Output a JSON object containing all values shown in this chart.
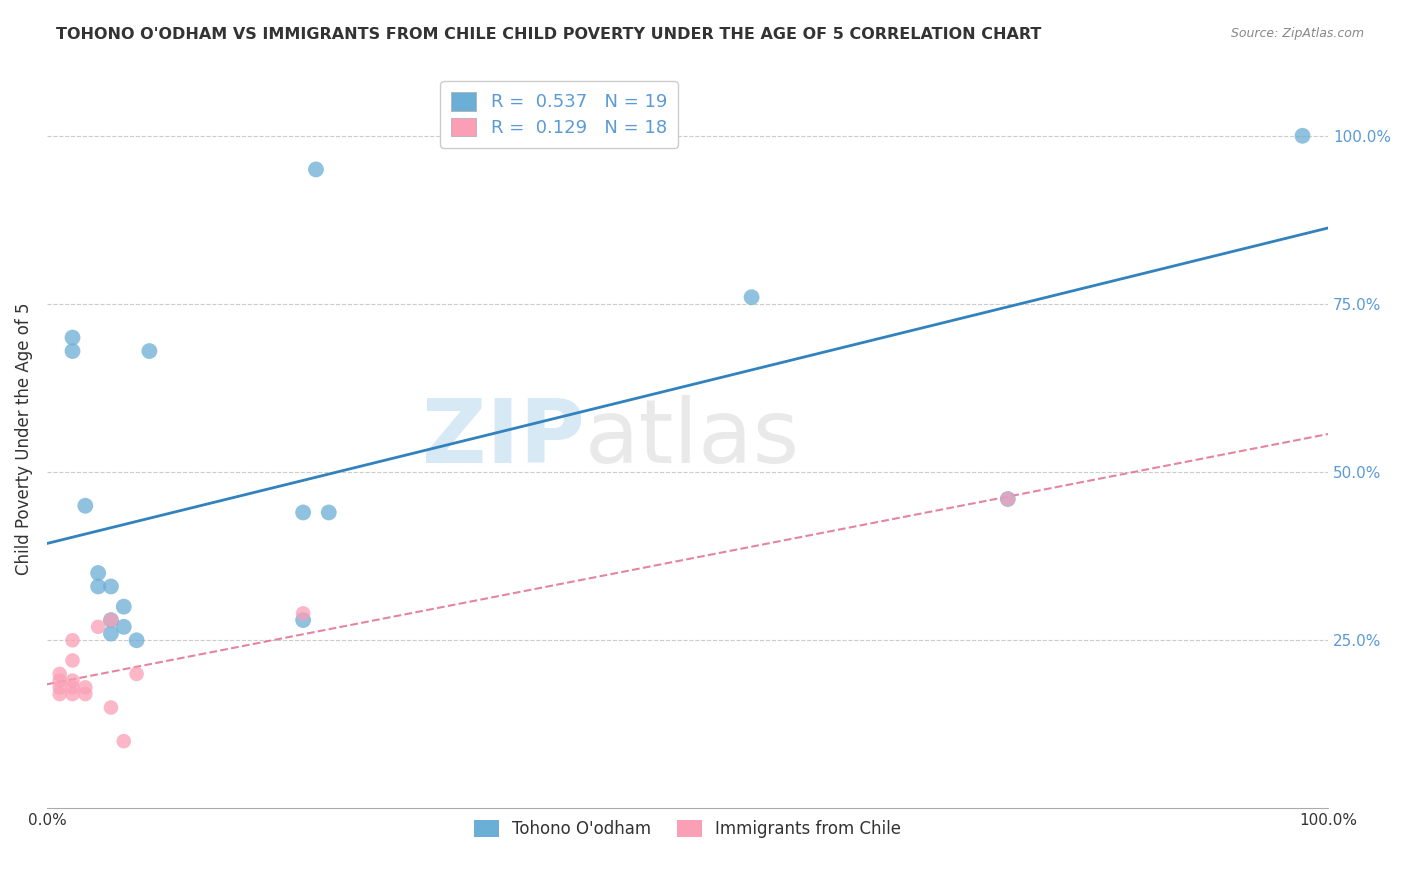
{
  "title": "TOHONO O'ODHAM VS IMMIGRANTS FROM CHILE CHILD POVERTY UNDER THE AGE OF 5 CORRELATION CHART",
  "source": "Source: ZipAtlas.com",
  "ylabel": "Child Poverty Under the Age of 5",
  "legend_label1": "Tohono O'odham",
  "legend_label2": "Immigrants from Chile",
  "R1": "0.537",
  "N1": "19",
  "R2": "0.129",
  "N2": "18",
  "color_blue": "#6baed6",
  "color_blue_line": "#3182bd",
  "color_pink": "#fa9fb5",
  "color_pink_line": "#e07090",
  "watermark_zip": "ZIP",
  "watermark_atlas": "atlas",
  "blue_x": [
    0.02,
    0.02,
    0.03,
    0.04,
    0.04,
    0.05,
    0.05,
    0.05,
    0.06,
    0.06,
    0.07,
    0.08,
    0.2,
    0.2,
    0.22,
    0.55,
    0.75,
    0.98,
    0.21
  ],
  "blue_y": [
    0.68,
    0.7,
    0.45,
    0.33,
    0.35,
    0.33,
    0.28,
    0.26,
    0.27,
    0.3,
    0.25,
    0.68,
    0.28,
    0.44,
    0.44,
    0.76,
    0.46,
    1.0,
    0.95
  ],
  "pink_x": [
    0.01,
    0.01,
    0.01,
    0.01,
    0.02,
    0.02,
    0.02,
    0.02,
    0.02,
    0.03,
    0.03,
    0.04,
    0.05,
    0.05,
    0.06,
    0.07,
    0.2,
    0.75
  ],
  "pink_y": [
    0.17,
    0.18,
    0.19,
    0.2,
    0.17,
    0.18,
    0.19,
    0.22,
    0.25,
    0.17,
    0.18,
    0.27,
    0.28,
    0.15,
    0.1,
    0.2,
    0.29,
    0.46
  ],
  "xlim": [
    0.0,
    1.0
  ],
  "ylim": [
    0.0,
    1.1
  ],
  "figsize": [
    14.06,
    8.92
  ],
  "dpi": 100
}
